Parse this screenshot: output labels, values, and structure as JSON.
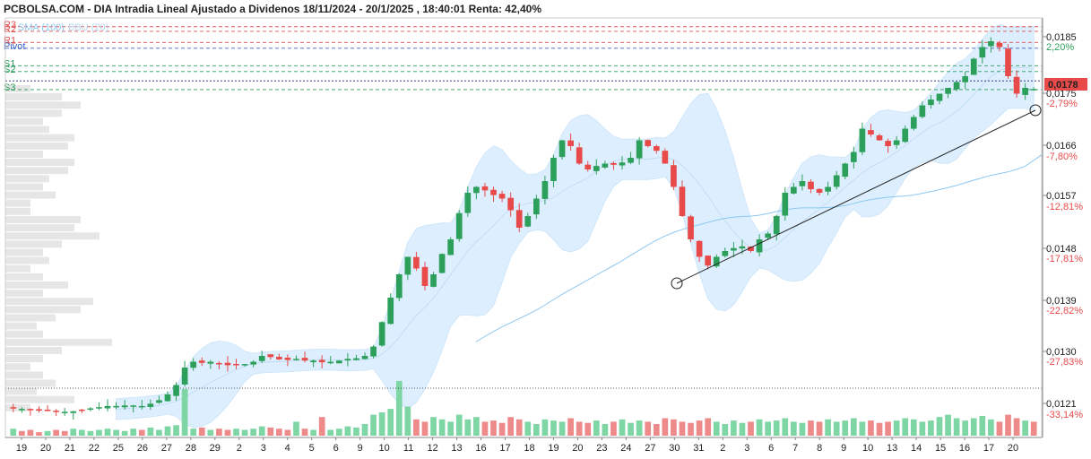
{
  "title": "PCBOLSA.COM - DIA Intradia Lineal Ajustado a Dividenos 18/11/2024 - 20/1/2025 , 18:40:01 Renta: 42,40%",
  "legend": {
    "sma_label": "SMA (100)",
    "bbu_label": "BBU (20)"
  },
  "colors": {
    "up": "#2ca05a",
    "down": "#e84a4a",
    "volume_up": "#7dd6a4",
    "volume_down": "#ef8a8a",
    "band_fill": "#dcefff",
    "sma_line": "#8cc8f0",
    "resistance": "#e05050",
    "support": "#2a9a5a",
    "pivot": "#3a5fc8",
    "price_tag": "#e84a4a"
  },
  "chart_data": {
    "type": "candlestick",
    "title": "PCBOLSA.COM - DIA Intradia Lineal Ajustado a Dividenos 18/11/2024 - 20/1/2025 , 18:40:01 Renta: 42,40%",
    "x_ticks": [
      "19",
      "20",
      "21",
      "22",
      "25",
      "26",
      "27",
      "28",
      "29",
      "2",
      "3",
      "4",
      "5",
      "6",
      "9",
      "10",
      "11",
      "12",
      "13",
      "16",
      "17",
      "18",
      "19",
      "20",
      "23",
      "24",
      "27",
      "30",
      "31",
      "2",
      "3",
      "6",
      "7",
      "8",
      "9",
      "10",
      "13",
      "14",
      "15",
      "16",
      "17",
      "20"
    ],
    "y_ticks": [
      "0,0185",
      "0,0175",
      "0,0166",
      "0,0157",
      "0,0148",
      "0,0139",
      "0,0130",
      "0,0121"
    ],
    "pct_ticks": [
      "2,20%",
      "-2,79%",
      "-7,80%",
      "-12,81%",
      "-17,81%",
      "-22,82%",
      "-27,83%",
      "-33,14%"
    ],
    "ylim": [
      0.0118,
      0.019
    ],
    "current_price": "0,0178",
    "levels": [
      {
        "name": "R3",
        "value": 0.01885,
        "kind": "resistance"
      },
      {
        "name": "R2",
        "value": 0.01877,
        "kind": "resistance"
      },
      {
        "name": "R1",
        "value": 0.01858,
        "kind": "resistance"
      },
      {
        "name": "Pivot",
        "value": 0.01848,
        "kind": "pivot"
      },
      {
        "name": "S1",
        "value": 0.01818,
        "kind": "support"
      },
      {
        "name": "S2",
        "value": 0.01808,
        "kind": "support"
      },
      {
        "name": "S3",
        "value": 0.01777,
        "kind": "support"
      }
    ],
    "trendline": {
      "from": [
        0.0144
      ],
      "to": [
        0.01757
      ]
    },
    "close_path": [
      0.0123,
      0.01229,
      0.01228,
      0.01226,
      0.01226,
      0.01225,
      0.01224,
      0.01225,
      0.01227,
      0.0123,
      0.01232,
      0.01234,
      0.01234,
      0.01235,
      0.01235,
      0.01234,
      0.01238,
      0.01244,
      0.01254,
      0.0127,
      0.013,
      0.0131,
      0.01308,
      0.0131,
      0.01306,
      0.01304,
      0.01305,
      0.01306,
      0.0131,
      0.0132,
      0.01318,
      0.01314,
      0.01313,
      0.01315,
      0.01312,
      0.01312,
      0.01309,
      0.0131,
      0.01312,
      0.01315,
      0.01316,
      0.0132,
      0.01336,
      0.01378,
      0.0142,
      0.0146,
      0.0149,
      0.0147,
      0.0144,
      0.0146,
      0.01495,
      0.0152,
      0.01565,
      0.016,
      0.0161,
      0.01604,
      0.01596,
      0.0159,
      0.0157,
      0.0154,
      0.0156,
      0.0159,
      0.0162,
      0.0166,
      0.0169,
      0.0168,
      0.0165,
      0.0164,
      0.01646,
      0.0165,
      0.01648,
      0.01652,
      0.0166,
      0.0169,
      0.0168,
      0.01672,
      0.0165,
      0.0161,
      0.0156,
      0.0152,
      0.0149,
      0.01475,
      0.0149,
      0.015,
      0.01505,
      0.01508,
      0.015,
      0.0152,
      0.0153,
      0.0156,
      0.016,
      0.0161,
      0.0162,
      0.01606,
      0.016,
      0.0161,
      0.0163,
      0.0165,
      0.0167,
      0.0171,
      0.017,
      0.0169,
      0.0168,
      0.0169,
      0.0171,
      0.0173,
      0.0175,
      0.0176,
      0.0177,
      0.0178,
      0.0179,
      0.018,
      0.0183,
      0.0185,
      0.0186,
      0.0185,
      0.018,
      0.0177,
      0.0178,
      0.01778
    ],
    "volume": [
      0.6,
      0.4,
      0.5,
      0.3,
      0.4,
      0.5,
      0.4,
      0.6,
      0.5,
      0.4,
      0.5,
      0.6,
      0.5,
      0.4,
      0.6,
      0.5,
      0.7,
      0.5,
      0.8,
      0.9,
      4.0,
      0.6,
      0.7,
      0.5,
      0.6,
      0.5,
      0.6,
      0.5,
      0.6,
      0.8,
      0.7,
      0.6,
      0.5,
      1.2,
      0.6,
      0.5,
      1.6,
      0.5,
      0.6,
      0.8,
      0.7,
      1.0,
      1.8,
      2.0,
      2.3,
      4.7,
      2.5,
      1.4,
      1.2,
      1.6,
      1.4,
      1.2,
      1.8,
      1.4,
      1.6,
      1.2,
      1.3,
      1.1,
      1.6,
      1.4,
      1.2,
      1.0,
      1.4,
      1.3,
      1.2,
      1.5,
      1.2,
      1.1,
      1.3,
      1.0,
      1.2,
      1.4,
      1.1,
      1.3,
      1.2,
      1.0,
      1.5,
      1.4,
      1.2,
      1.1,
      1.3,
      1.5,
      1.2,
      1.0,
      1.3,
      1.1,
      1.2,
      1.4,
      1.2,
      1.3,
      1.5,
      1.2,
      1.1,
      1.3,
      1.2,
      1.4,
      1.2,
      1.3,
      1.5,
      1.2,
      1.3,
      1.1,
      1.2,
      1.3,
      1.5,
      1.4,
      1.2,
      1.3,
      1.6,
      1.8,
      1.5,
      1.3,
      1.5,
      1.7,
      1.4,
      1.2,
      1.8,
      1.5,
      1.3,
      1.2
    ],
    "volume_profile": [
      0.2,
      0.45,
      0.6,
      0.45,
      0.3,
      0.35,
      0.55,
      0.5,
      0.3,
      0.55,
      0.5,
      0.35,
      0.3,
      0.4,
      0.2,
      0.2,
      0.6,
      0.55,
      0.75,
      0.45,
      0.3,
      0.35,
      0.2,
      0.3,
      0.5,
      0.3,
      0.7,
      0.6,
      0.4,
      0.25,
      0.3,
      0.85,
      0.45,
      0.3,
      0.2,
      0.3,
      0.4,
      0.25,
      0.55,
      0.2
    ]
  }
}
